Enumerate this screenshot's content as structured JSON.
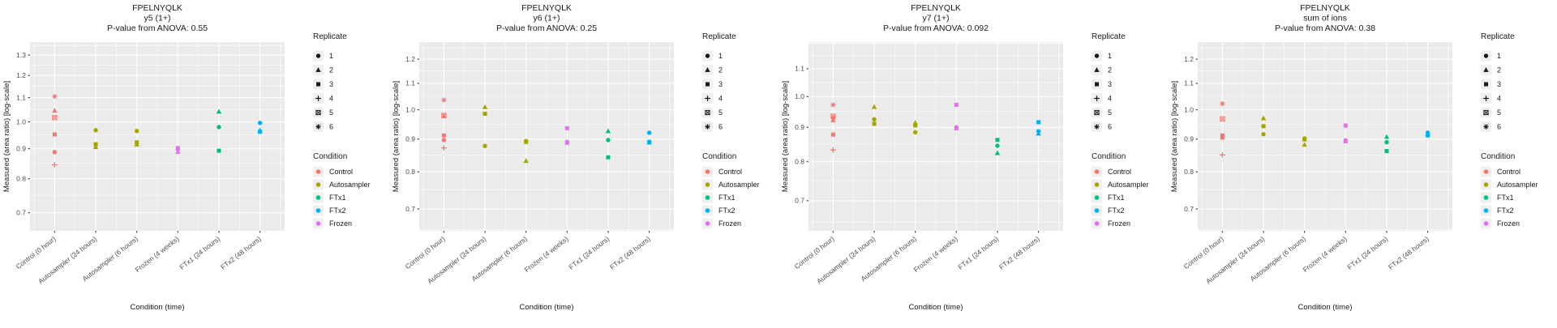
{
  "figure": {
    "background": "#FFFFFF",
    "panel_bg": "#EBEBEB",
    "grid_color": "#FFFFFF",
    "tick_color": "#333333",
    "tick_label_color": "#4D4D4D",
    "text_color": "#1A1A1A",
    "xlabel": "Condition (time)",
    "ylabel": "Measured (area ratio) [log-scale]",
    "categories": [
      "Control (0 hour)",
      "Autosampler (24 hours)",
      "Autosampler (6 hours)",
      "Frozen (4 weeks)",
      "FTx1 (24 hours)",
      "FTx2 (48 hours)"
    ],
    "category_condition": [
      "Control",
      "Autosampler",
      "Autosampler",
      "Frozen",
      "FTx1",
      "FTx2"
    ],
    "condition_colors": {
      "Control": "#F8766D",
      "Autosampler": "#A3A500",
      "FTx1": "#00BF7D",
      "FTx2": "#00B0F6",
      "Frozen": "#E76BF3"
    },
    "replicate_legend": {
      "title": "Replicate",
      "items": [
        {
          "label": "1",
          "shape": "circle"
        },
        {
          "label": "2",
          "shape": "triangle"
        },
        {
          "label": "3",
          "shape": "square"
        },
        {
          "label": "4",
          "shape": "plus"
        },
        {
          "label": "5",
          "shape": "square-cross"
        },
        {
          "label": "6",
          "shape": "asterisk"
        }
      ]
    },
    "condition_legend": {
      "title": "Condition",
      "items": [
        {
          "label": "Control",
          "color": "#F8766D"
        },
        {
          "label": "Autosampler",
          "color": "#A3A500"
        },
        {
          "label": "FTx1",
          "color": "#00BF7D"
        },
        {
          "label": "FTx2",
          "color": "#00B0F6"
        },
        {
          "label": "Frozen",
          "color": "#E76BF3"
        }
      ]
    }
  },
  "chart_data": [
    {
      "type": "scatter",
      "title_lines": [
        "FPELNYQLK",
        "y5 (1+)",
        "P-value from ANOVA: 0.55"
      ],
      "peptide": "FPELNYQLK",
      "ion": "y5 (1+)",
      "p_value": "0.55",
      "xlabel": "Condition (time)",
      "ylabel": "Measured (area ratio) [log-scale]",
      "yticks": [
        "0.7",
        "0.8",
        "0.9",
        "1.0",
        "1.1",
        "1.2",
        "1.3"
      ],
      "ylim": [
        0.652,
        1.368
      ],
      "points": [
        {
          "cat": 0,
          "rep": 6,
          "y": 1.105
        },
        {
          "cat": 0,
          "rep": 2,
          "y": 1.045
        },
        {
          "cat": 0,
          "rep": 5,
          "y": 1.017
        },
        {
          "cat": 0,
          "rep": 3,
          "y": 0.952
        },
        {
          "cat": 0,
          "rep": 1,
          "y": 0.888
        },
        {
          "cat": 0,
          "rep": 4,
          "y": 0.845
        },
        {
          "cat": 1,
          "rep": 1,
          "y": 0.968
        },
        {
          "cat": 1,
          "rep": 3,
          "y": 0.916
        },
        {
          "cat": 1,
          "rep": 2,
          "y": 0.906
        },
        {
          "cat": 2,
          "rep": 1,
          "y": 0.965
        },
        {
          "cat": 2,
          "rep": 3,
          "y": 0.923
        },
        {
          "cat": 2,
          "rep": 2,
          "y": 0.915
        },
        {
          "cat": 3,
          "rep": 3,
          "y": 0.902
        },
        {
          "cat": 3,
          "rep": 1,
          "y": 0.898
        },
        {
          "cat": 3,
          "rep": 2,
          "y": 0.889
        },
        {
          "cat": 4,
          "rep": 2,
          "y": 1.041
        },
        {
          "cat": 4,
          "rep": 1,
          "y": 0.98
        },
        {
          "cat": 4,
          "rep": 3,
          "y": 0.893
        },
        {
          "cat": 5,
          "rep": 1,
          "y": 0.996
        },
        {
          "cat": 5,
          "rep": 2,
          "y": 0.967
        },
        {
          "cat": 5,
          "rep": 3,
          "y": 0.962
        }
      ]
    },
    {
      "type": "scatter",
      "title_lines": [
        "FPELNYQLK",
        "y6 (1+)",
        "P-value from ANOVA: 0.25"
      ],
      "peptide": "FPELNYQLK",
      "ion": "y6 (1+)",
      "p_value": "0.25",
      "xlabel": "Condition (time)",
      "ylabel": "Measured (area ratio) [log-scale]",
      "yticks": [
        "0.7",
        "0.8",
        "0.9",
        "1.0",
        "1.1",
        "1.2"
      ],
      "ylim": [
        0.647,
        1.276
      ],
      "points": [
        {
          "cat": 0,
          "rep": 6,
          "y": 1.036
        },
        {
          "cat": 0,
          "rep": 5,
          "y": 0.98
        },
        {
          "cat": 0,
          "rep": 2,
          "y": 0.977
        },
        {
          "cat": 0,
          "rep": 3,
          "y": 0.912
        },
        {
          "cat": 0,
          "rep": 1,
          "y": 0.897
        },
        {
          "cat": 0,
          "rep": 4,
          "y": 0.872
        },
        {
          "cat": 1,
          "rep": 2,
          "y": 1.01
        },
        {
          "cat": 1,
          "rep": 3,
          "y": 0.986
        },
        {
          "cat": 1,
          "rep": 1,
          "y": 0.878
        },
        {
          "cat": 2,
          "rep": 1,
          "y": 0.894
        },
        {
          "cat": 2,
          "rep": 3,
          "y": 0.891
        },
        {
          "cat": 2,
          "rep": 2,
          "y": 0.832
        },
        {
          "cat": 3,
          "rep": 3,
          "y": 0.936
        },
        {
          "cat": 3,
          "rep": 1,
          "y": 0.891
        },
        {
          "cat": 3,
          "rep": 2,
          "y": 0.888
        },
        {
          "cat": 4,
          "rep": 2,
          "y": 0.926
        },
        {
          "cat": 4,
          "rep": 1,
          "y": 0.897
        },
        {
          "cat": 4,
          "rep": 3,
          "y": 0.843
        },
        {
          "cat": 5,
          "rep": 1,
          "y": 0.921
        },
        {
          "cat": 5,
          "rep": 3,
          "y": 0.891
        },
        {
          "cat": 5,
          "rep": 2,
          "y": 0.889
        }
      ]
    },
    {
      "type": "scatter",
      "title_lines": [
        "FPELNYQLK",
        "y7 (1+)",
        "P-value from ANOVA: 0.092"
      ],
      "peptide": "FPELNYQLK",
      "ion": "y7 (1+)",
      "p_value": "0.092",
      "xlabel": "Condition (time)",
      "ylabel": "Measured (area ratio) [log-scale]",
      "yticks": [
        "0.7",
        "0.8",
        "0.9",
        "1.0",
        "1.1"
      ],
      "ylim": [
        0.6315,
        1.205
      ],
      "points": [
        {
          "cat": 0,
          "rep": 6,
          "y": 0.972
        },
        {
          "cat": 0,
          "rep": 5,
          "y": 0.935
        },
        {
          "cat": 0,
          "rep": 1,
          "y": 0.93
        },
        {
          "cat": 0,
          "rep": 2,
          "y": 0.922
        },
        {
          "cat": 0,
          "rep": 3,
          "y": 0.878
        },
        {
          "cat": 0,
          "rep": 4,
          "y": 0.833
        },
        {
          "cat": 1,
          "rep": 2,
          "y": 0.965
        },
        {
          "cat": 1,
          "rep": 1,
          "y": 0.925
        },
        {
          "cat": 1,
          "rep": 3,
          "y": 0.911
        },
        {
          "cat": 2,
          "rep": 2,
          "y": 0.914
        },
        {
          "cat": 2,
          "rep": 3,
          "y": 0.906
        },
        {
          "cat": 2,
          "rep": 1,
          "y": 0.885
        },
        {
          "cat": 3,
          "rep": 3,
          "y": 0.972
        },
        {
          "cat": 3,
          "rep": 1,
          "y": 0.9
        },
        {
          "cat": 3,
          "rep": 2,
          "y": 0.897
        },
        {
          "cat": 4,
          "rep": 3,
          "y": 0.862
        },
        {
          "cat": 4,
          "rep": 1,
          "y": 0.845
        },
        {
          "cat": 4,
          "rep": 2,
          "y": 0.824
        },
        {
          "cat": 5,
          "rep": 3,
          "y": 0.916
        },
        {
          "cat": 5,
          "rep": 1,
          "y": 0.888
        },
        {
          "cat": 5,
          "rep": 2,
          "y": 0.881
        }
      ]
    },
    {
      "type": "scatter",
      "title_lines": [
        "FPELNYQLK",
        "sum of ions",
        "P-value from ANOVA: 0.38"
      ],
      "peptide": "FPELNYQLK",
      "ion": "sum of ions",
      "p_value": "0.38",
      "xlabel": "Condition (time)",
      "ylabel": "Measured (area ratio) [log-scale]",
      "yticks": [
        "0.7",
        "0.8",
        "0.9",
        "1.0",
        "1.1",
        "1.2"
      ],
      "ylim": [
        0.647,
        1.276
      ],
      "points": [
        {
          "cat": 0,
          "rep": 6,
          "y": 1.022
        },
        {
          "cat": 0,
          "rep": 5,
          "y": 0.968
        },
        {
          "cat": 0,
          "rep": 3,
          "y": 0.912
        },
        {
          "cat": 0,
          "rep": 1,
          "y": 0.908
        },
        {
          "cat": 0,
          "rep": 2,
          "y": 0.905
        },
        {
          "cat": 0,
          "rep": 4,
          "y": 0.85
        },
        {
          "cat": 1,
          "rep": 2,
          "y": 0.97
        },
        {
          "cat": 1,
          "rep": 3,
          "y": 0.943
        },
        {
          "cat": 1,
          "rep": 1,
          "y": 0.916
        },
        {
          "cat": 2,
          "rep": 1,
          "y": 0.902
        },
        {
          "cat": 2,
          "rep": 3,
          "y": 0.899
        },
        {
          "cat": 2,
          "rep": 2,
          "y": 0.882
        },
        {
          "cat": 3,
          "rep": 3,
          "y": 0.945
        },
        {
          "cat": 3,
          "rep": 1,
          "y": 0.896
        },
        {
          "cat": 3,
          "rep": 2,
          "y": 0.893
        },
        {
          "cat": 4,
          "rep": 2,
          "y": 0.907
        },
        {
          "cat": 4,
          "rep": 1,
          "y": 0.89
        },
        {
          "cat": 4,
          "rep": 3,
          "y": 0.862
        },
        {
          "cat": 5,
          "rep": 1,
          "y": 0.921
        },
        {
          "cat": 5,
          "rep": 2,
          "y": 0.917
        },
        {
          "cat": 5,
          "rep": 3,
          "y": 0.912
        }
      ]
    }
  ]
}
